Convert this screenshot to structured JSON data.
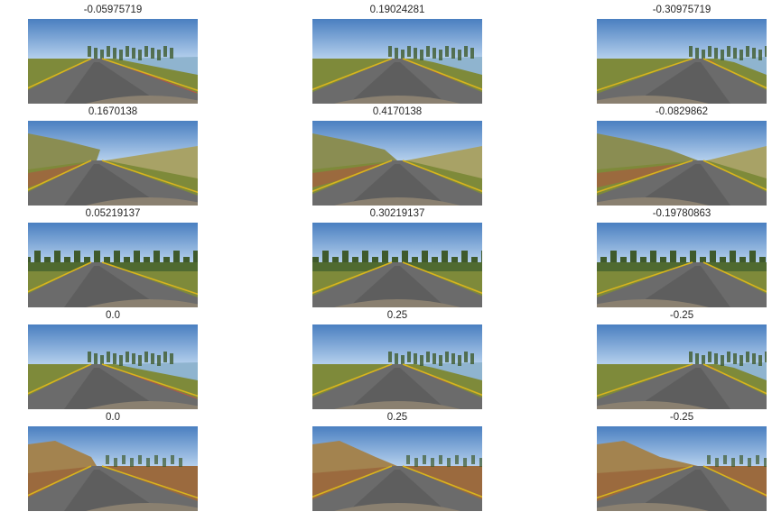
{
  "figure": {
    "rows": [
      {
        "scene": "lake-track-bridge",
        "cells": [
          {
            "title": "-0.05975719",
            "camera": "left",
            "shift": -1
          },
          {
            "title": "0.19024281",
            "camera": "center",
            "shift": 0
          },
          {
            "title": "-0.30975719",
            "camera": "right",
            "shift": 1
          }
        ]
      },
      {
        "scene": "lake-track-hills",
        "cells": [
          {
            "title": "0.1670138",
            "camera": "left",
            "shift": -1
          },
          {
            "title": "0.4170138",
            "camera": "center",
            "shift": 0
          },
          {
            "title": "-0.0829862",
            "camera": "right",
            "shift": 1
          }
        ]
      },
      {
        "scene": "lake-track-trees",
        "cells": [
          {
            "title": "0.05219137",
            "camera": "left",
            "shift": -1
          },
          {
            "title": "0.30219137",
            "camera": "center",
            "shift": 0
          },
          {
            "title": "-0.19780863",
            "camera": "right",
            "shift": 1
          }
        ]
      },
      {
        "scene": "lake-track-bridge",
        "cells": [
          {
            "title": "0.0",
            "camera": "left",
            "shift": -1
          },
          {
            "title": "0.25",
            "camera": "center",
            "shift": 0
          },
          {
            "title": "-0.25",
            "camera": "right",
            "shift": 1
          }
        ]
      },
      {
        "scene": "lake-track-dirt",
        "cells": [
          {
            "title": "0.0",
            "camera": "left",
            "shift": -1
          },
          {
            "title": "0.25",
            "camera": "center",
            "shift": 0
          },
          {
            "title": "-0.25",
            "camera": "right",
            "shift": 1
          }
        ]
      }
    ],
    "colors": {
      "sky_top": "#4a7fc0",
      "sky_bottom": "#b9d3ee",
      "road": "#6b6b6b",
      "road_dark": "#4f4f4f",
      "lane_yellow": "#d8b41e",
      "grass": "#7e8a3a",
      "dirt": "#9b6a3e",
      "water": "#8fb4cf",
      "hill": "#8a8d52",
      "tree": "#3f5a2c",
      "hood": "#8a8070",
      "curb_red": "#c84848"
    }
  }
}
